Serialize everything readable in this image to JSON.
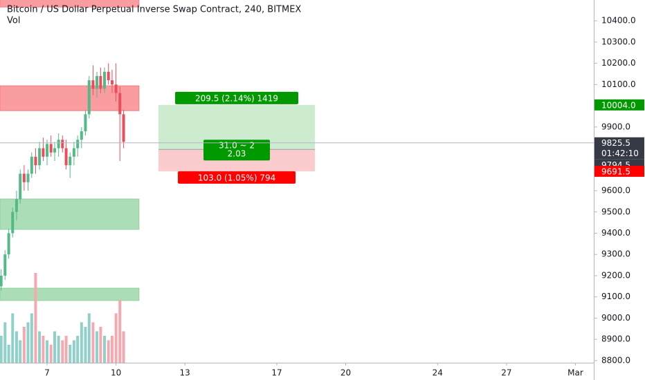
{
  "chart_data": {
    "type": "candlestick",
    "title": "Bitcoin / US Dollar Perpetual Inverse Swap Contract, 240, BITMEX",
    "subtitle": "Vol",
    "x": [
      5.0,
      5.17,
      5.33,
      5.5,
      5.67,
      5.83,
      6.0,
      6.17,
      6.33,
      6.5,
      6.67,
      6.83,
      7.0,
      7.17,
      7.33,
      7.5,
      7.67,
      7.83,
      8.0,
      8.17,
      8.33,
      8.5,
      8.67,
      8.83,
      9.0,
      9.17,
      9.33,
      9.5,
      9.67,
      9.83,
      10.0,
      10.17,
      10.33
    ],
    "open": [
      9150,
      9200,
      9300,
      9400,
      9500,
      9560,
      9680,
      9640,
      9680,
      9760,
      9720,
      9800,
      9760,
      9820,
      9780,
      9800,
      9840,
      9800,
      9720,
      9760,
      9800,
      9840,
      9880,
      9960,
      10120,
      10080,
      10140,
      10080,
      10160,
      10120,
      10100,
      10060,
      9960
    ],
    "high": [
      9230,
      9320,
      9420,
      9520,
      9600,
      9700,
      9720,
      9700,
      9780,
      9800,
      9830,
      9850,
      9840,
      9860,
      9830,
      9870,
      9860,
      9840,
      9780,
      9830,
      9860,
      9900,
      9980,
      10140,
      10190,
      10160,
      10180,
      10180,
      10200,
      10170,
      10200,
      10090,
      9980
    ],
    "low": [
      9130,
      9180,
      9280,
      9380,
      9460,
      9540,
      9600,
      9600,
      9660,
      9680,
      9700,
      9740,
      9720,
      9760,
      9740,
      9760,
      9780,
      9700,
      9660,
      9720,
      9760,
      9800,
      9860,
      9940,
      10050,
      10040,
      10060,
      10060,
      10100,
      10060,
      10020,
      9740,
      9800
    ],
    "close": [
      9200,
      9300,
      9400,
      9500,
      9560,
      9680,
      9640,
      9680,
      9760,
      9720,
      9800,
      9760,
      9820,
      9780,
      9800,
      9840,
      9800,
      9720,
      9760,
      9800,
      9840,
      9880,
      9960,
      10120,
      10080,
      10140,
      10080,
      10160,
      10120,
      10100,
      10060,
      9960,
      9830
    ],
    "up_color": "#53b987",
    "down_color": "#eb4d5c",
    "volume": [
      30,
      45,
      20,
      55,
      35,
      25,
      40,
      45,
      55,
      100,
      35,
      30,
      25,
      20,
      35,
      30,
      25,
      30,
      20,
      25,
      30,
      45,
      40,
      55,
      45,
      35,
      40,
      30,
      25,
      30,
      55,
      70,
      35
    ],
    "volume_up_color": "#8fd0c8",
    "volume_down_color": "#f4a9b0",
    "volume_ylim": [
      0,
      100
    ],
    "xlim": [
      4.95,
      30.8
    ],
    "xticks": [
      7,
      10,
      13,
      17,
      20,
      24,
      27,
      {
        "value": 30,
        "label": "Mar"
      }
    ],
    "ylim": [
      8790,
      10498
    ],
    "yticks": [
      {
        "value": 10400,
        "label": "10400.0"
      },
      {
        "value": 10300,
        "label": "10300.0"
      },
      {
        "value": 10200,
        "label": "10200.0"
      },
      {
        "value": 10100,
        "label": "10100.0"
      },
      {
        "value": 9900,
        "label": "9900.0"
      },
      {
        "value": 9600,
        "label": "9600.0"
      },
      {
        "value": 9500,
        "label": "9500.0"
      },
      {
        "value": 9400,
        "label": "9400.0"
      },
      {
        "value": 9300,
        "label": "9300.0"
      },
      {
        "value": 9200,
        "label": "9200.0"
      },
      {
        "value": 9100,
        "label": "9100.0"
      },
      {
        "value": 9000,
        "label": "9000.0"
      },
      {
        "value": 8900,
        "label": "8900.0"
      },
      {
        "value": 8800,
        "label": "8800.0"
      }
    ],
    "zones": [
      {
        "from": 4.95,
        "to": 11.0,
        "low": 10465,
        "high": 10500,
        "color": "#f77c80"
      },
      {
        "from": 4.95,
        "to": 11.0,
        "low": 9977,
        "high": 10094,
        "color": "#f77c80"
      },
      {
        "from": 4.95,
        "to": 11.0,
        "low": 9418,
        "high": 9561,
        "color": "#8fd19e"
      },
      {
        "from": 4.95,
        "to": 11.0,
        "low": 9083,
        "high": 9141,
        "color": "#8fd19e"
      }
    ],
    "position": {
      "start": 11.85,
      "end": 18.66,
      "entry": 9794.5,
      "target": 10004.0,
      "stop": 9691.5,
      "target_label": "209.5 (2.14%) 1419",
      "ratio_label": [
        "31.0 ~ 2",
        "2.03"
      ],
      "stop_label": "103.0 (1.05%) 794"
    },
    "last_price": 9825.5,
    "countdown": "01:42:10",
    "price_labels": [
      {
        "value": 10004.0,
        "label": "10004.0",
        "color": "#009900"
      },
      {
        "value": 9794.5,
        "label": "9794.5",
        "color": "#363a45"
      },
      {
        "value": 9691.5,
        "label": "9691.5",
        "color": "#ff0000"
      }
    ]
  }
}
